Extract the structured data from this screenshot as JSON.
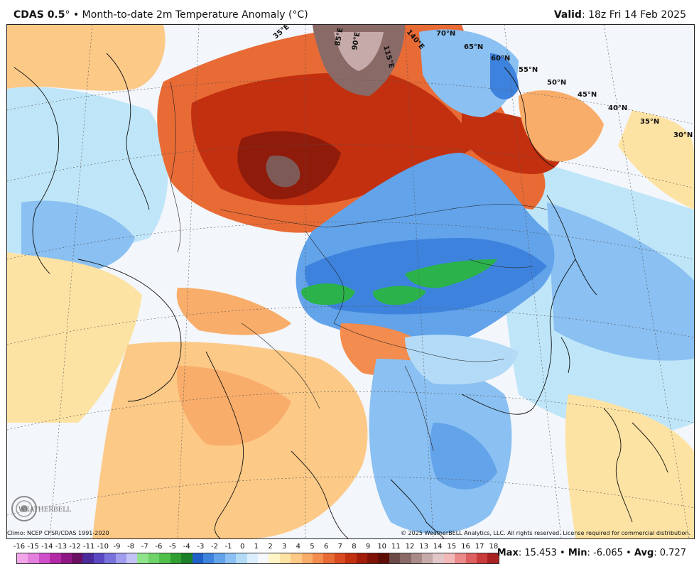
{
  "header": {
    "model": "CDAS 0.5",
    "degree": "°",
    "bullet": "•",
    "title": "Month-to-date 2m Temperature Anomaly (°C)",
    "valid_label": "Valid",
    "valid_value": ": 18z Fri 14 Feb 2025"
  },
  "map": {
    "lat_labels": [
      "70°N",
      "65°N",
      "60°N",
      "55°N",
      "50°N",
      "45°N",
      "40°N",
      "35°N",
      "30°N"
    ],
    "lon_labels": [
      "35°E",
      "85°E",
      "90°E",
      "115°E",
      "140°E"
    ],
    "colors": {
      "warm_extreme": "#7d5a56",
      "warm_strong": "#b3260e",
      "warm": "#e35a1f",
      "warm_mild": "#f7a863",
      "warm_slight": "#fde3a3",
      "neutral": "#f3f6fb",
      "cool_slight": "#bfe6f8",
      "cool": "#7db6ee",
      "cool_strong": "#3d83dd",
      "cold": "#2bb24a"
    }
  },
  "credits": {
    "climo": "Climo: NCEP CFSR/CDAS 1991-2020",
    "copyright": "© 2025 WeatherBELL Analytics, LLC. All rights reserved. License required for commercial distribution."
  },
  "logo": {
    "text": "WEATHERBELL"
  },
  "legend": {
    "ticks": [
      "-16",
      "-15",
      "-14",
      "-13",
      "-12",
      "-11",
      "-10",
      "-9",
      "-8",
      "-7",
      "-6",
      "-5",
      "-4",
      "-3",
      "-2",
      "-1",
      "0",
      "1",
      "2",
      "3",
      "4",
      "5",
      "6",
      "7",
      "8",
      "9",
      "10",
      "11",
      "12",
      "13",
      "14",
      "15",
      "16",
      "17",
      "18"
    ],
    "colors": [
      "#f0a6e9",
      "#e37fdc",
      "#d04fca",
      "#b42aa6",
      "#8f1783",
      "#6a0f62",
      "#4b2a9a",
      "#5a49c2",
      "#7a72dc",
      "#a09cee",
      "#c3c3f5",
      "#8fe38a",
      "#6fd36a",
      "#4fbf4a",
      "#2f9f32",
      "#1b7f28",
      "#1f5fc7",
      "#3d83dd",
      "#62a3ea",
      "#8ac0f2",
      "#b3dbf8",
      "#dbeefb",
      "#f5f7fb",
      "#fff5c6",
      "#fde3a3",
      "#fcc987",
      "#f9ad6a",
      "#f38c4f",
      "#e86a35",
      "#d94a20",
      "#c2300f",
      "#a31c0a",
      "#7f1206",
      "#5e0d04",
      "#6b4a47",
      "#8a6a67",
      "#a88a88",
      "#c6aaa9",
      "#e1c7c7",
      "#f3b8b8",
      "#ea8a8a",
      "#dd5f5f",
      "#c93a3a",
      "#a82222"
    ]
  },
  "stats": {
    "max_label": "Max",
    "max_value": "15.453",
    "min_label": "Min",
    "min_value": "-6.065",
    "avg_label": "Avg",
    "avg_value": "0.727",
    "sep": "•"
  }
}
